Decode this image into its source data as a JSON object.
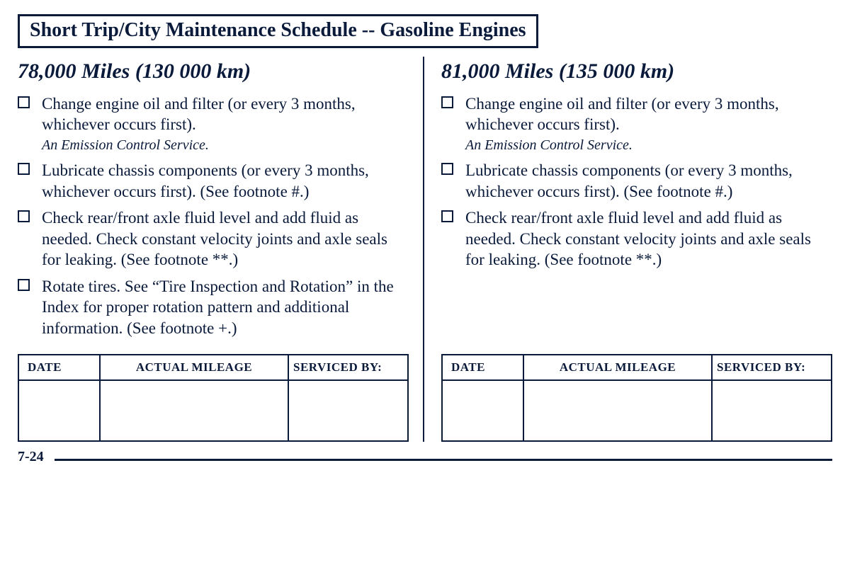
{
  "title": "Short Trip/City Maintenance Schedule -- Gasoline Engines",
  "left": {
    "heading": "78,000 Miles (130 000 km)",
    "items": [
      {
        "text": "Change engine oil and filter (or every 3 months, whichever occurs first).",
        "emission": "An Emission Control Service."
      },
      {
        "text": "Lubricate chassis components (or every 3 months, whichever occurs first). (See footnote #.)"
      },
      {
        "text": "Check rear/front axle fluid level and add fluid as needed. Check constant velocity joints and axle seals for leaking. (See footnote **.)"
      },
      {
        "text": "Rotate tires. See “Tire Inspection and Rotation” in the Index for proper rotation pattern and additional information. (See footnote +.)"
      }
    ]
  },
  "right": {
    "heading": "81,000 Miles (135 000 km)",
    "items": [
      {
        "text": "Change engine oil and filter (or every 3 months, whichever occurs first).",
        "emission": "An Emission Control Service."
      },
      {
        "text": "Lubricate chassis components (or every 3 months, whichever occurs first). (See footnote #.)"
      },
      {
        "text": "Check rear/front axle fluid level and add fluid as needed. Check constant velocity joints and axle seals for leaking. (See footnote **.)"
      }
    ]
  },
  "table": {
    "headers": {
      "date": "DATE",
      "mileage": "ACTUAL MILEAGE",
      "serviced": "SERVICED BY:"
    }
  },
  "pageNumber": "7-24"
}
